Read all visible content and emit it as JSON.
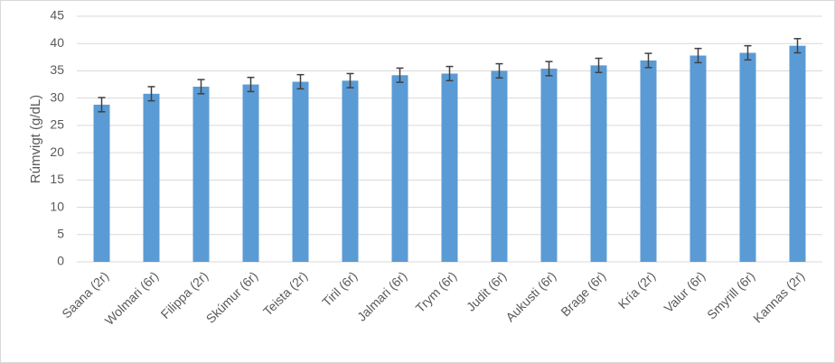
{
  "chart_data": {
    "type": "bar",
    "ylabel": "Rúmvigt (g/dL)",
    "categories": [
      "Saana (2r)",
      "Wolmari (6r)",
      "Filippa (2r)",
      "Skúmur (6r)",
      "Teista (2r)",
      "Tiril (6r)",
      "Jalmari (6r)",
      "Trym (6r)",
      "Judit (6r)",
      "Aukusti (6r)",
      "Brage (6r)",
      "Kría (2r)",
      "Valur (6r)",
      "Smyrill (6r)",
      "Kannas (2r)"
    ],
    "values": [
      28.8,
      30.8,
      32.1,
      32.5,
      33.0,
      33.2,
      34.2,
      34.5,
      35.0,
      35.4,
      36.0,
      36.9,
      37.8,
      38.3,
      39.6
    ],
    "errors": [
      1.3,
      1.3,
      1.3,
      1.3,
      1.3,
      1.3,
      1.3,
      1.3,
      1.3,
      1.3,
      1.3,
      1.3,
      1.3,
      1.3,
      1.3
    ],
    "color": "#5b9bd5",
    "ylim": [
      0,
      45
    ],
    "yticks": [
      0,
      5,
      10,
      15,
      20,
      25,
      30,
      35,
      40,
      45
    ],
    "grid": true
  }
}
